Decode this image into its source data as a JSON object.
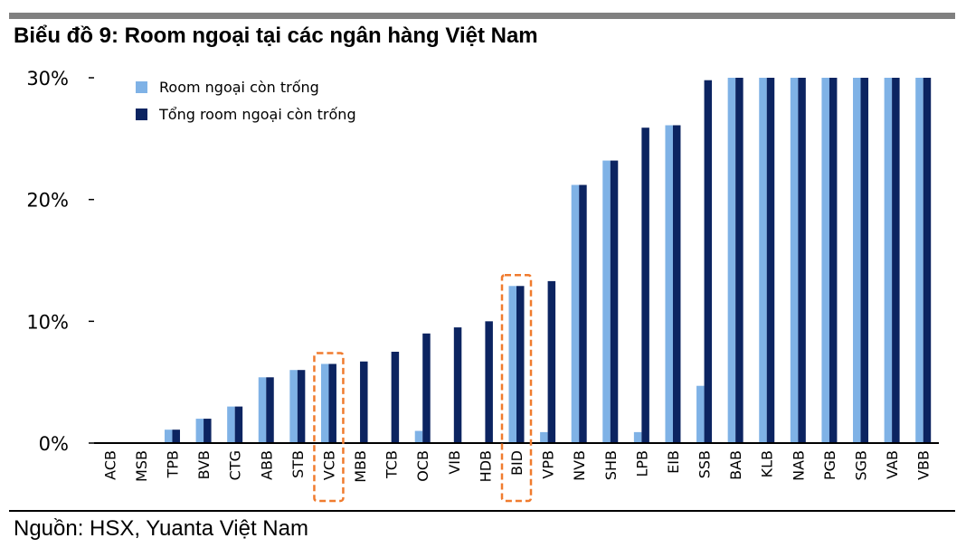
{
  "title": "Biểu đồ 9: Room ngoại tại các ngân hàng Việt Nam",
  "source": "Nguồn: HSX, Yuanta Việt Nam",
  "colors": {
    "series_light": "#7fb2e6",
    "series_dark": "#0c2461",
    "highlight": "#f07b2e",
    "rule_top": "#808080"
  },
  "chart_data": {
    "type": "bar",
    "categories": [
      "ACB",
      "MSB",
      "TPB",
      "BVB",
      "CTG",
      "ABB",
      "STB",
      "VCB",
      "MBB",
      "TCB",
      "OCB",
      "VIB",
      "HDB",
      "BID",
      "VPB",
      "NVB",
      "SHB",
      "LPB",
      "EIB",
      "SSB",
      "BAB",
      "KLB",
      "NAB",
      "PGB",
      "SGB",
      "VAB",
      "VBB"
    ],
    "series": [
      {
        "name": "Room ngoại còn trống",
        "values": [
          0,
          0,
          1.1,
          2.0,
          3.0,
          5.4,
          6.0,
          6.5,
          0,
          0,
          1.0,
          0,
          0,
          12.9,
          0.9,
          21.2,
          23.2,
          0.9,
          26.1,
          4.7,
          30,
          30,
          30,
          30,
          30,
          30,
          30
        ]
      },
      {
        "name": "Tổng room ngoại còn trống",
        "values": [
          0,
          0,
          1.1,
          2.0,
          3.0,
          5.4,
          6.0,
          6.5,
          6.7,
          7.5,
          9.0,
          9.5,
          10.0,
          12.9,
          13.3,
          21.2,
          23.2,
          25.9,
          26.1,
          29.8,
          30,
          30,
          30,
          30,
          30,
          30,
          30
        ]
      }
    ],
    "yticks": [
      "0%",
      "10%",
      "20%",
      "30%"
    ],
    "ylim": [
      0,
      30
    ],
    "legend_placement": "top-left",
    "highlighted_categories": [
      "VCB",
      "BID"
    ],
    "grid": false
  }
}
